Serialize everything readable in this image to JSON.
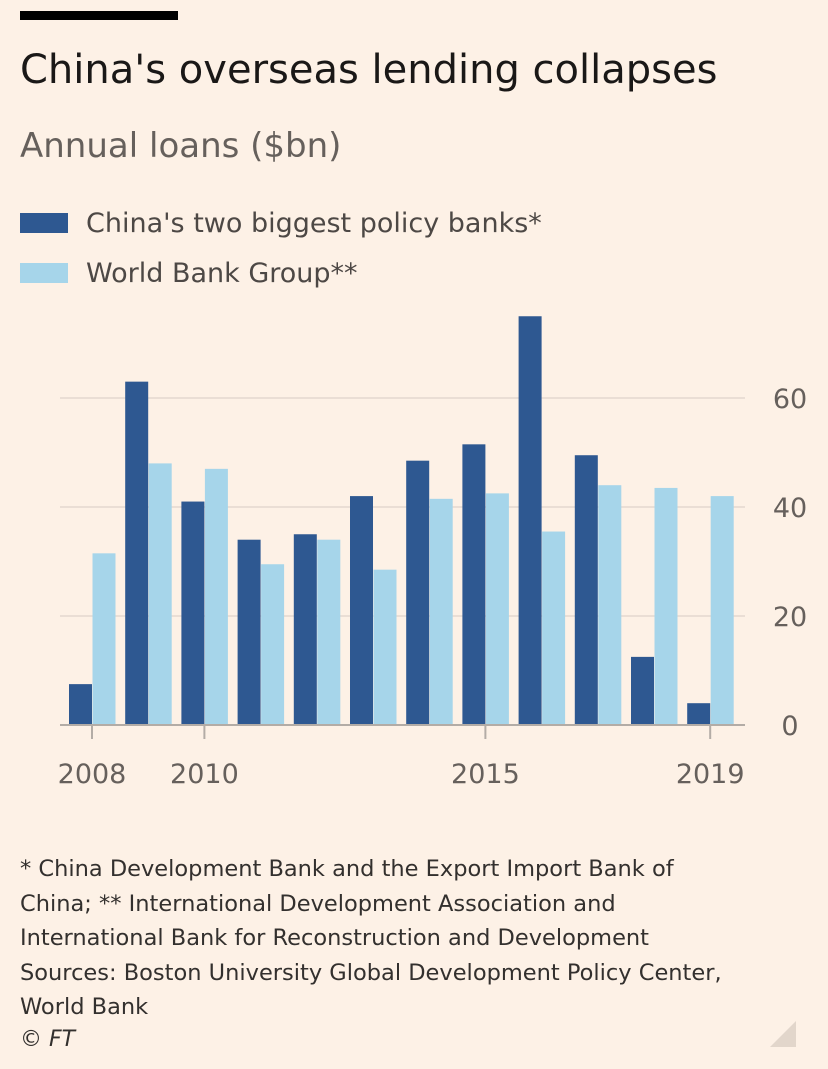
{
  "header": {
    "title": "China's overseas lending collapses",
    "subtitle": "Annual loans ($bn)"
  },
  "legend": {
    "items": [
      {
        "label": "China's two biggest policy banks*",
        "color": "#2e5891"
      },
      {
        "label": "World Bank Group**",
        "color": "#a6d5ea"
      }
    ]
  },
  "chart_data": {
    "type": "bar",
    "title": "China's overseas lending collapses",
    "subtitle": "Annual loans ($bn)",
    "xlabel": "",
    "ylabel": "",
    "ylim": [
      0,
      77
    ],
    "yticks": [
      0,
      20,
      40,
      60
    ],
    "grid": true,
    "y_axis_side": "right",
    "legend_position": "top-left",
    "categories": [
      "2008",
      "2009",
      "2010",
      "2011",
      "2012",
      "2013",
      "2014",
      "2015",
      "2016",
      "2017",
      "2018",
      "2019"
    ],
    "xtick_labels": [
      "2008",
      "2010",
      "2015",
      "2019"
    ],
    "series": [
      {
        "name": "China's two biggest policy banks*",
        "color": "#2e5891",
        "values": [
          7.5,
          63,
          41,
          34,
          35,
          42,
          48.5,
          51.5,
          75,
          49.5,
          12.5,
          4
        ]
      },
      {
        "name": "World Bank Group**",
        "color": "#a6d5ea",
        "values": [
          31.5,
          48,
          47,
          29.5,
          34,
          28.5,
          41.5,
          42.5,
          35.5,
          44,
          43.5,
          42
        ]
      }
    ]
  },
  "notes": {
    "lines": [
      "* China Development Bank and the Export Import Bank of",
      "China; ** International Development Association and",
      "International Bank for Reconstruction and Development",
      "Sources: Boston University Global Development Policy Center,",
      "World Bank"
    ],
    "copyright": "© FT"
  }
}
